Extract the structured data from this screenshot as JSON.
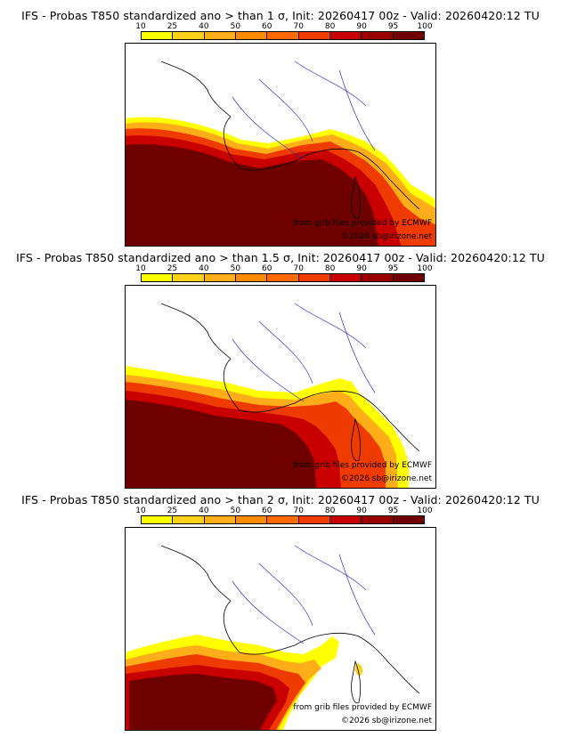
{
  "colorbar": {
    "ticks": [
      "10",
      "25",
      "40",
      "50",
      "60",
      "70",
      "80",
      "90",
      "95",
      "100"
    ],
    "colors": [
      "#ffff00",
      "#ffd21a",
      "#ffae1a",
      "#ff8c00",
      "#ff6a00",
      "#ef3a00",
      "#c80000",
      "#990000",
      "#6e0000"
    ]
  },
  "panels": [
    {
      "title": "IFS - Probas T850  standardized ano > than 1 σ, Init: 20260417 00z - Valid: 20260420:12 TU",
      "credit": "from grib files provided by ECMWF",
      "copyright": "©2026 sb@irizone.net"
    },
    {
      "title": "IFS - Probas T850  standardized ano > than 1.5 σ, Init: 20260417 00z - Valid: 20260420:12 TU",
      "credit": "from grib files provided by ECMWF",
      "copyright": "©2026 sb@irizone.net"
    },
    {
      "title": "IFS - Probas T850  standardized ano > than 2 σ, Init: 20260417 00z - Valid: 20260420:12 TU",
      "credit": "from grib files provided by ECMWF",
      "copyright": "©2026 sb@irizone.net"
    }
  ]
}
